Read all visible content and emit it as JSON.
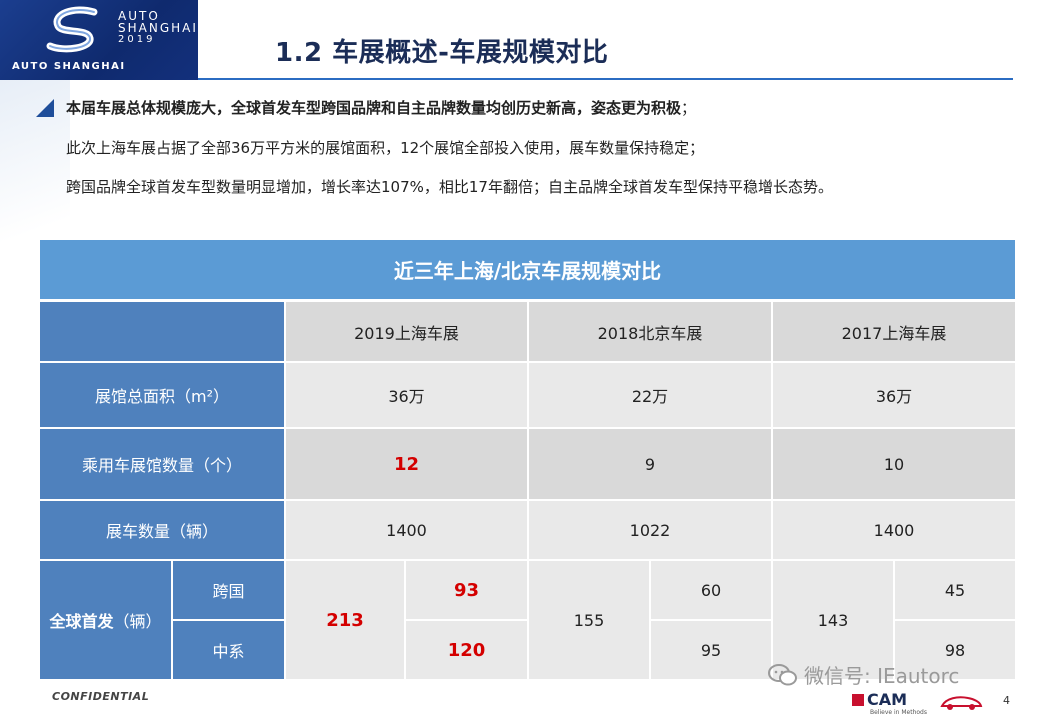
{
  "header": {
    "logo_top": "AUTO",
    "logo_mid": "SHANGHAI",
    "logo_year": "2019",
    "logo_bottom": "AUTO SHANGHAI",
    "title": "1.2 车展概述-车展规模对比"
  },
  "bullets": {
    "line1_bold": "本届车展总体规模庞大，全球首发车型跨国品牌和自主品牌数量均创历史新高，姿态更为积极",
    "line1_end": "；",
    "line2": "此次上海车展占据了全部36万平方米的展馆面积，12个展馆全部投入使用，展车数量保持稳定；",
    "line3": "跨国品牌全球首发车型数量明显增加，增长率达107%，相比17年翻倍；自主品牌全球首发车型保持平稳增长态势。"
  },
  "table": {
    "title": "近三年上海/北京车展规模对比",
    "columns": [
      "2019上海车展",
      "2018北京车展",
      "2017上海车展"
    ],
    "rows": [
      {
        "label": "展馆总面积（m²）",
        "values": [
          "36万",
          "22万",
          "36万"
        ]
      },
      {
        "label": "乘用车展馆数量（个）",
        "values": [
          "12",
          "9",
          "10"
        ]
      },
      {
        "label": "展车数量（辆）",
        "values": [
          "1400",
          "1022",
          "1400"
        ]
      }
    ],
    "premiere": {
      "label_bold": "全球首发",
      "label_rest": "（辆）",
      "sub_labels": [
        "跨国",
        "中系"
      ],
      "totals": [
        "213",
        "155",
        "143"
      ],
      "foreign": [
        "93",
        "60",
        "45"
      ],
      "domestic": [
        "120",
        "95",
        "98"
      ]
    }
  },
  "footer": {
    "confidential": "CONFIDENTIAL",
    "watermark": "微信号: IEautorc",
    "cam": "CAM",
    "cam_sub": "Believe in Methods",
    "page": "4"
  },
  "colors": {
    "header_blue": "#5b9bd5",
    "label_blue": "#4f81bd",
    "highlight_red": "#d40000",
    "title_navy": "#1b2d57"
  }
}
